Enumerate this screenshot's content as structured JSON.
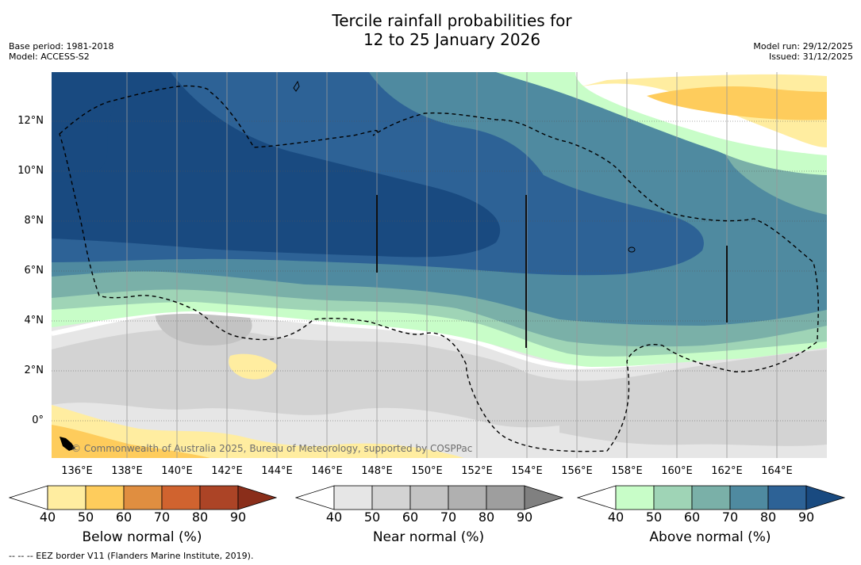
{
  "header": {
    "title_line1": "Tercile rainfall probabilities for",
    "title_line2": "12 to 25 January 2026",
    "base_period": "Base period: 1981-2018",
    "model": "Model: ACCESS-S2",
    "model_run": "Model run: 29/12/2025",
    "issued": "Issued: 31/12/2025"
  },
  "map": {
    "lat_labels": [
      "12°N",
      "10°N",
      "8°N",
      "6°N",
      "4°N",
      "2°N",
      "0°"
    ],
    "lon_labels": [
      "136°E",
      "138°E",
      "140°E",
      "142°E",
      "144°E",
      "146°E",
      "148°E",
      "150°E",
      "152°E",
      "154°E",
      "156°E",
      "158°E",
      "160°E",
      "162°E",
      "164°E"
    ],
    "copyright": "© Commonwealth of Australia 2025, Bureau of Meteorology, supported by COSPPac"
  },
  "colorbars": [
    {
      "title": "Below normal (%)",
      "ticks": [
        "40",
        "50",
        "60",
        "70",
        "80",
        "90"
      ],
      "colors": [
        "#ffffff",
        "#ffeda0",
        "#fecc5c",
        "#e08e40",
        "#d0632f",
        "#ac4426",
        "#8a2e1a"
      ]
    },
    {
      "title": "Near normal (%)",
      "ticks": [
        "40",
        "50",
        "60",
        "70",
        "80",
        "90"
      ],
      "colors": [
        "#ffffff",
        "#e6e6e6",
        "#d3d3d3",
        "#c3c3c3",
        "#b0b0b0",
        "#9e9e9e",
        "#808080"
      ]
    },
    {
      "title": "Above normal (%)",
      "ticks": [
        "40",
        "50",
        "60",
        "70",
        "80",
        "90"
      ],
      "colors": [
        "#ffffff",
        "#c8fdc8",
        "#9fd4b6",
        "#7ab0a8",
        "#4f8aa0",
        "#2d6296",
        "#194a80"
      ]
    }
  ],
  "footnote": "--  --  -- EEZ border V11 (Flanders Marine Institute, 2019)."
}
